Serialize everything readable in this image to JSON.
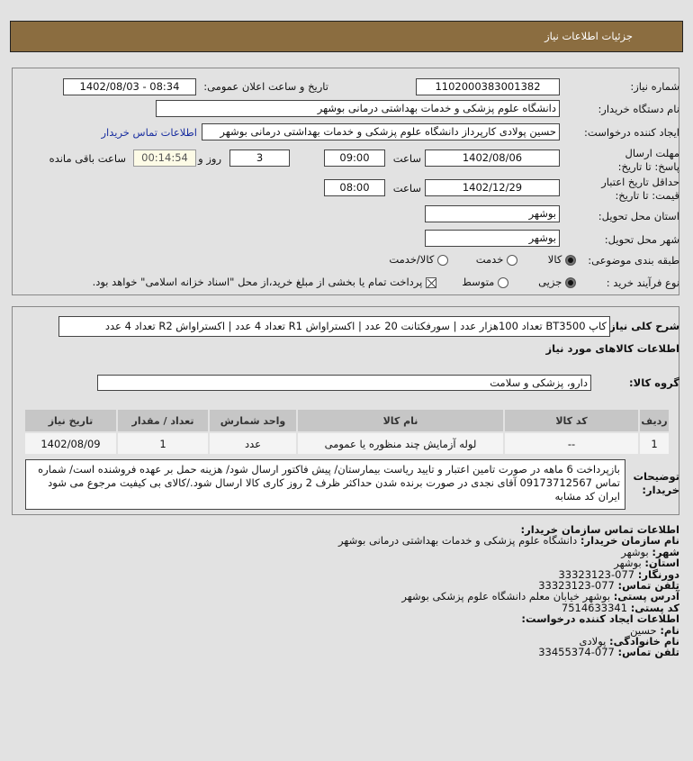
{
  "header": {
    "title": "جزئیات اطلاعات نیاز"
  },
  "form": {
    "need_number_label": "شماره نیاز:",
    "need_number": "1102000383001382",
    "announce_label": "تاریخ و ساعت اعلان عمومی:",
    "announce_value": "1402/08/03 - 08:34",
    "buyer_label": "نام دستگاه خریدار:",
    "buyer": "دانشگاه علوم پزشکی و خدمات بهداشتی درمانی بوشهر",
    "creator_label": "ایجاد کننده درخواست:",
    "creator": "حسین پولادی کارپرداز دانشگاه علوم پزشکی و خدمات بهداشتی درمانی بوشهر",
    "contact_link": "اطلاعات تماس خریدار",
    "deadline_label": "مهلت ارسال پاسخ: تا تاریخ:",
    "deadline_date": "1402/08/06",
    "time_label": "ساعت",
    "deadline_time": "09:00",
    "days": "3",
    "days_label": "روز و",
    "remaining": "00:14:54",
    "remaining_label": "ساعت باقی مانده",
    "validity_label": "حداقل تاریخ اعتبار قیمت: تا تاریخ:",
    "validity_date": "1402/12/29",
    "validity_time": "08:00",
    "province_label": "استان محل تحویل:",
    "province": "بوشهر",
    "city_label": "شهر محل تحویل:",
    "city": "بوشهر",
    "category_label": "طبقه بندی موضوعی:",
    "category_options": [
      "کالا",
      "خدمت",
      "کالا/خدمت"
    ],
    "category_selected": "کالا",
    "process_label": "نوع فرآیند خرید :",
    "process_options": [
      "جزیی",
      "متوسط"
    ],
    "process_selected": "جزیی",
    "payment_note": "پرداخت تمام یا بخشی از مبلغ خرید،از محل \"اسناد خزانه اسلامی\" خواهد بود."
  },
  "details": {
    "summary_label": "شرح کلی نیاز:",
    "summary": "کاپ BT3500 تعداد 100هزار عدد | سورفکتانت 20 عدد | اکستراواش R1 تعداد 4 عدد | اکستراواش R2 تعداد 4 عدد",
    "goods_title": "اطلاعات کالاهای مورد نیاز",
    "group_label": "گروه کالا:",
    "group": "دارو، پزشکی و سلامت",
    "table": {
      "headers": [
        "ردیف",
        "کد کالا",
        "نام کالا",
        "واحد شمارش",
        "تعداد / مقدار",
        "تاریخ نیاز"
      ],
      "rows": [
        [
          "1",
          "--",
          "لوله آزمایش چند منظوره یا عمومی",
          "عدد",
          "1",
          "1402/08/09"
        ]
      ]
    },
    "notes_label": "توضیحات خریدار:",
    "notes": "بازپرداخت 6 ماهه در صورت تامین اعتبار و تایید ریاست بیمارستان/ پیش فاکتور ارسال شود/ هزینه حمل بر عهده فروشنده است/ شماره تماس 09173712567 آقای نجدی در صورت برنده شدن حداکثر ظرف 2 روز کاری کالا ارسال شود./کالای بی کیفیت مرجوع می شود ایران کد مشابه"
  },
  "contact": {
    "title": "اطلاعات تماس سازمان خریدار:",
    "org_label": "نام سازمان خریدار:",
    "org": "دانشگاه علوم پزشکی و خدمات بهداشتی درمانی بوشهر",
    "city_label": "شهر:",
    "city": "بوشهر",
    "province_label": "استان:",
    "province": "بوشهر",
    "fax_label": "دورنگار:",
    "fax": "077-33323123",
    "phone_label": "تلفن تماس:",
    "phone": "077-33323123",
    "address_label": "آدرس پستی:",
    "address": "بوشهر خیابان معلم دانشگاه علوم پزشکی بوشهر",
    "postal_label": "کد پستی:",
    "postal": "7514633341",
    "creator_title": "اطلاعات ایجاد کننده درخواست:",
    "name_label": "نام:",
    "name": "حسین",
    "family_label": "نام خانوادگی:",
    "family": "پولادی",
    "creator_phone_label": "تلفن تماس:",
    "creator_phone": "077-33455374"
  }
}
